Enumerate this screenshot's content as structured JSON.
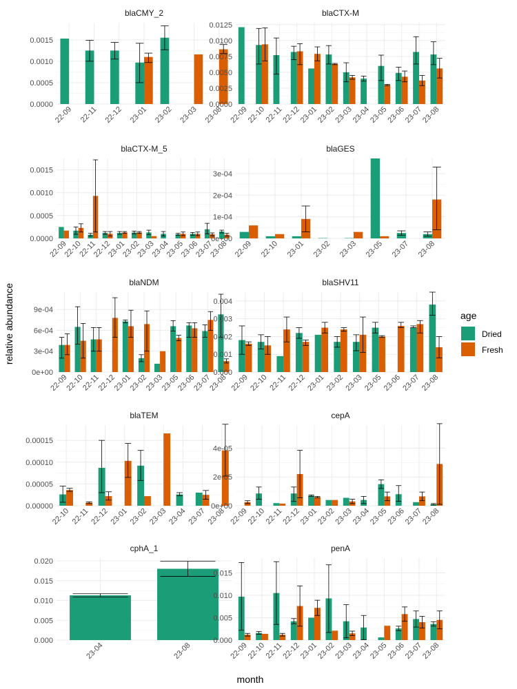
{
  "figure": {
    "xlabel": "month",
    "ylabel": "relative abundance",
    "legend": {
      "title": "age",
      "placement": "right",
      "items": [
        {
          "name": "Dried",
          "color": "#1B9E77"
        },
        {
          "name": "Fresh",
          "color": "#D95F02"
        }
      ]
    },
    "grid": true
  },
  "chart_data": [
    {
      "type": "bar",
      "title": "blaCMY_2",
      "categories": [
        "22-09",
        "22-11",
        "22-12",
        "23-01",
        "23-02",
        "23-03",
        "23-08"
      ],
      "ylim": [
        0,
        0.0019
      ],
      "yticks": [
        0,
        0.0005,
        0.001,
        0.0015
      ],
      "ytick_labels": [
        "0.0000",
        "0.0005",
        "0.0010",
        "0.0015"
      ],
      "series": [
        {
          "name": "Dried",
          "values": [
            0.00153,
            0.00125,
            0.00125,
            0.00097,
            0.00155,
            null,
            null
          ],
          "err_low": [
            null,
            0.001,
            0.00105,
            0.0005,
            0.00127,
            null,
            null
          ],
          "err_high": [
            null,
            0.00149,
            0.00144,
            0.00142,
            0.00183,
            null,
            null
          ]
        },
        {
          "name": "Fresh",
          "values": [
            null,
            null,
            null,
            0.0011,
            null,
            0.00116,
            0.00128
          ],
          "err_low": [
            null,
            null,
            null,
            0.00097,
            null,
            null,
            0.00118
          ],
          "err_high": [
            null,
            null,
            null,
            0.00119,
            null,
            null,
            0.00139
          ]
        }
      ]
    },
    {
      "type": "bar",
      "title": "blaCTX-M",
      "categories": [
        "22-09",
        "22-10",
        "22-11",
        "22-12",
        "23-01",
        "23-02",
        "23-03",
        "23-04",
        "23-05",
        "23-06",
        "23-07",
        "23-08"
      ],
      "ylim": [
        0,
        0.0128
      ],
      "yticks": [
        0,
        0.0025,
        0.005,
        0.0075,
        0.01,
        0.0125
      ],
      "ytick_labels": [
        "0.0000",
        "0.0025",
        "0.0050",
        "0.0075",
        "0.0100",
        "0.0125"
      ],
      "series": [
        {
          "name": "Dried",
          "values": [
            0.0121,
            0.0093,
            0.0077,
            0.0082,
            0.0056,
            0.0078,
            0.005,
            0.004,
            0.006,
            0.0049,
            0.0082,
            0.0078
          ],
          "err_low": [
            null,
            0.0063,
            0.0047,
            0.007,
            null,
            0.0063,
            0.0035,
            0.0036,
            0.0037,
            0.0037,
            0.0063,
            0.0062
          ],
          "err_high": [
            null,
            0.0119,
            0.0104,
            0.0091,
            null,
            0.0092,
            0.0065,
            0.0044,
            0.0077,
            0.0058,
            0.0106,
            0.0098
          ]
        },
        {
          "name": "Fresh",
          "values": [
            null,
            0.0094,
            null,
            0.0083,
            0.0079,
            0.0063,
            0.0042,
            null,
            0.003,
            0.0043,
            0.0037,
            0.0056
          ],
          "err_low": [
            null,
            0.0068,
            null,
            0.0062,
            0.0068,
            0.0062,
            0.0039,
            null,
            0.0029,
            0.0035,
            0.0029,
            0.0041
          ],
          "err_high": [
            null,
            0.012,
            null,
            0.0095,
            0.009,
            0.0064,
            0.0045,
            null,
            0.0031,
            0.0052,
            0.0045,
            0.0072
          ]
        }
      ]
    },
    {
      "type": "bar",
      "title": "blaCTX-M_5",
      "categories": [
        "22-09",
        "22-10",
        "22-11",
        "22-12",
        "23-01",
        "23-02",
        "23-03",
        "23-04",
        "23-05",
        "23-06",
        "23-07",
        "23-08"
      ],
      "ylim": [
        0,
        0.00175
      ],
      "yticks": [
        0,
        0.0005,
        0.001,
        0.0015
      ],
      "ytick_labels": [
        "0.0000",
        "0.0005",
        "0.0010",
        "0.0015"
      ],
      "series": [
        {
          "name": "Dried",
          "values": [
            0.00025,
            0.00017,
            8e-05,
            0.00012,
            0.00012,
            0.00013,
            0.00013,
            0.0001,
            9e-05,
            0.0001,
            0.0002,
            0.00015
          ],
          "err_low": [
            null,
            9e-05,
            5e-05,
            9e-05,
            9e-05,
            0.0001,
            8e-05,
            5e-05,
            7e-05,
            7e-05,
            0.0001,
            0.00012
          ],
          "err_high": [
            null,
            0.00025,
            0.00011,
            0.00015,
            0.00015,
            0.00016,
            0.00018,
            0.00015,
            0.00011,
            0.00013,
            0.00033,
            0.00018
          ]
        },
        {
          "name": "Fresh",
          "values": [
            0.00017,
            0.00023,
            0.00093,
            0.0001,
            0.00013,
            0.00013,
            5e-05,
            null,
            0.0001,
            0.0001,
            9e-05,
            8e-05
          ],
          "err_low": [
            null,
            0.00014,
            0.00014,
            5e-05,
            0.00011,
            0.00011,
            null,
            null,
            6e-05,
            6e-05,
            6e-05,
            5e-05
          ],
          "err_high": [
            null,
            0.00032,
            0.00172,
            0.00015,
            0.00015,
            0.00015,
            null,
            null,
            0.00014,
            0.00014,
            0.00012,
            0.00011
          ]
        }
      ]
    },
    {
      "type": "bar",
      "title": "blaGES",
      "categories": [
        "22-09",
        "22-10",
        "23-01",
        "23-02",
        "23-03",
        "23-05",
        "23-07",
        "23-08"
      ],
      "ylim": [
        0,
        0.00037
      ],
      "yticks": [
        0,
        0.0001,
        0.0002,
        0.0003
      ],
      "ytick_labels": [
        "0e+00",
        "1e-04",
        "2e-04",
        "3e-04"
      ],
      "series": [
        {
          "name": "Dried",
          "values": [
            3e-05,
            1e-05,
            1e-05,
            1.5e-06,
            1.5e-06,
            0.00037,
            2.5e-05,
            2e-05
          ],
          "err_low": [
            null,
            null,
            null,
            null,
            null,
            null,
            1.5e-05,
            1e-05
          ],
          "err_high": [
            null,
            null,
            null,
            null,
            null,
            null,
            3.5e-05,
            3e-05
          ]
        },
        {
          "name": "Fresh",
          "values": [
            6e-05,
            2e-05,
            9e-05,
            null,
            3e-05,
            1e-05,
            null,
            0.00018
          ],
          "err_low": [
            null,
            null,
            3e-05,
            null,
            null,
            null,
            null,
            4e-05
          ],
          "err_high": [
            null,
            null,
            0.00015,
            null,
            null,
            null,
            null,
            0.00033
          ]
        }
      ]
    },
    {
      "type": "bar",
      "title": "blaNDM",
      "categories": [
        "22-09",
        "22-10",
        "22-11",
        "22-12",
        "23-01",
        "23-02",
        "23-03",
        "23-05",
        "23-06",
        "23-07",
        "23-08"
      ],
      "ylim": [
        0,
        0.00115
      ],
      "yticks": [
        0,
        0.0003,
        0.0006,
        0.0009
      ],
      "ytick_labels": [
        "0e+00",
        "3e-04",
        "6e-04",
        "9e-04"
      ],
      "series": [
        {
          "name": "Dried",
          "values": [
            0.00039,
            0.00065,
            0.00047,
            null,
            0.00073,
            0.0002,
            0.00012,
            0.00066,
            0.00067,
            0.00059,
            0.00083
          ],
          "err_low": [
            0.0002,
            0.0004,
            0.0003,
            null,
            0.00071,
            0.00015,
            null,
            0.00059,
            0.0005,
            0.0005,
            0.0005
          ],
          "err_high": [
            0.0005,
            0.00094,
            0.00064,
            null,
            0.00075,
            0.00025,
            null,
            0.00074,
            0.00071,
            0.00068,
            0.00112
          ]
        },
        {
          "name": "Fresh",
          "values": [
            0.00039,
            0.00045,
            0.00047,
            0.00078,
            0.00066,
            0.00069,
            0.0003,
            0.00049,
            0.00063,
            0.00075,
            0.00016
          ],
          "err_low": [
            0.00025,
            0.0002,
            0.0003,
            0.0005,
            0.0005,
            0.0003,
            null,
            0.00045,
            0.0005,
            0.0006,
            0.00013
          ],
          "err_high": [
            0.00055,
            0.0007,
            0.00064,
            0.00107,
            0.00089,
            0.00088,
            null,
            0.00053,
            0.00071,
            0.00087,
            0.00019
          ]
        }
      ]
    },
    {
      "type": "bar",
      "title": "blaSHV11",
      "categories": [
        "22-09",
        "22-10",
        "22-11",
        "22-12",
        "23-01",
        "23-02",
        "23-03",
        "23-05",
        "23-06",
        "23-07",
        "23-08"
      ],
      "ylim": [
        0,
        0.0045
      ],
      "yticks": [
        0,
        0.001,
        0.002,
        0.003,
        0.004
      ],
      "ytick_labels": [
        "0.000",
        "0.001",
        "0.002",
        "0.003",
        "0.004"
      ],
      "series": [
        {
          "name": "Dried",
          "values": [
            0.0018,
            0.0017,
            0.0009,
            0.0022,
            0.0021,
            0.0017,
            0.0017,
            0.0025,
            null,
            0.0025,
            0.0038
          ],
          "err_low": [
            0.001,
            0.0013,
            null,
            0.0019,
            null,
            0.0014,
            0.0012,
            0.0022,
            null,
            0.0025,
            0.0032
          ],
          "err_high": [
            0.0026,
            0.0021,
            null,
            0.0025,
            null,
            0.002,
            0.0021,
            0.0028,
            null,
            0.0026,
            0.0045
          ]
        },
        {
          "name": "Fresh",
          "values": [
            0.0016,
            0.0015,
            0.0024,
            0.0017,
            0.0025,
            0.0024,
            0.0021,
            0.002,
            0.0026,
            0.0027,
            0.0014
          ],
          "err_low": [
            0.0015,
            0.001,
            0.0017,
            0.0015,
            0.0022,
            0.0023,
            0.0011,
            0.00195,
            0.0025,
            0.0022,
            0.0008
          ],
          "err_high": [
            0.0017,
            0.002,
            0.0031,
            0.0018,
            0.0028,
            0.0025,
            0.0031,
            0.00205,
            0.0028,
            0.0029,
            0.002
          ]
        }
      ]
    },
    {
      "type": "bar",
      "title": "blaTEM",
      "categories": [
        "22-10",
        "22-11",
        "22-12",
        "23-01",
        "23-02",
        "23-03",
        "23-04",
        "23-07",
        "23-08"
      ],
      "ylim": [
        0,
        0.000185
      ],
      "yticks": [
        0,
        5e-05,
        0.0001,
        0.00015
      ],
      "ytick_labels": [
        "0.00000",
        "0.00005",
        "0.00010",
        "0.00015"
      ],
      "series": [
        {
          "name": "Dried",
          "values": [
            2.6e-05,
            null,
            8.7e-05,
            null,
            9.2e-05,
            null,
            2.6e-05,
            3e-05,
            null
          ],
          "err_low": [
            8e-06,
            null,
            3e-05,
            null,
            5.8e-05,
            null,
            2.3e-05,
            null,
            null
          ],
          "err_high": [
            4.5e-05,
            null,
            0.00015,
            null,
            0.000127,
            null,
            3e-05,
            null,
            null
          ]
        },
        {
          "name": "Fresh",
          "values": [
            3.6e-05,
            7e-06,
            2.2e-05,
            0.000103,
            2.2e-05,
            0.000166,
            null,
            2.5e-05,
            0.000127
          ],
          "err_low": [
            3.3e-05,
            5e-06,
            1.3e-05,
            6.5e-05,
            null,
            null,
            null,
            1.5e-05,
            6.8e-05
          ],
          "err_high": [
            4e-05,
            9e-06,
            3.2e-05,
            0.000143,
            null,
            null,
            null,
            3.5e-05,
            0.000187
          ]
        }
      ]
    },
    {
      "type": "bar",
      "title": "cepA",
      "categories": [
        "22-09",
        "22-10",
        "22-11",
        "22-12",
        "23-01",
        "23-02",
        "23-03",
        "23-04",
        "23-05",
        "23-06",
        "23-07",
        "23-08"
      ],
      "ylim": [
        0,
        5.6e-05
      ],
      "yticks": [
        0,
        2e-05,
        4e-05
      ],
      "ytick_labels": [
        "0e+00",
        "2e-05",
        "4e-05"
      ],
      "series": [
        {
          "name": "Dried",
          "values": [
            null,
            8.5e-06,
            1.8e-06,
            8.5e-06,
            7e-06,
            4e-06,
            5.5e-06,
            4e-06,
            1.5e-05,
            8e-06,
            2.5e-06,
            1e-06
          ],
          "err_low": [
            null,
            4.5e-06,
            null,
            3e-06,
            6.5e-06,
            null,
            null,
            1.5e-06,
            1.2e-05,
            3e-06,
            null,
            5e-07
          ],
          "err_high": [
            null,
            1.3e-05,
            null,
            1.3e-05,
            7.5e-06,
            null,
            null,
            6.5e-06,
            1.8e-05,
            1.4e-05,
            null,
            1.5e-06
          ]
        },
        {
          "name": "Fresh",
          "values": [
            2.5e-06,
            null,
            1.5e-06,
            2.2e-05,
            6e-06,
            4e-06,
            3e-06,
            null,
            6.5e-06,
            null,
            6.5e-06,
            2.9e-05
          ],
          "err_low": [
            1.5e-06,
            null,
            null,
            5.5e-06,
            5.5e-06,
            null,
            1.5e-06,
            null,
            3.5e-06,
            null,
            3.5e-06,
            1e-06
          ],
          "err_high": [
            3.5e-06,
            null,
            null,
            3.85e-05,
            6.5e-06,
            null,
            4.5e-06,
            null,
            9.5e-06,
            null,
            9.5e-06,
            5.7e-05
          ]
        }
      ]
    },
    {
      "type": "bar",
      "title": "cphA_1",
      "categories": [
        "23-04",
        "23-08"
      ],
      "ylim": [
        0,
        0.0207
      ],
      "yticks": [
        0,
        0.005,
        0.01,
        0.015,
        0.02
      ],
      "ytick_labels": [
        "0.000",
        "0.005",
        "0.010",
        "0.015",
        "0.020"
      ],
      "series": [
        {
          "name": "Dried",
          "values": [
            0.0113,
            0.018
          ],
          "err_low": [
            0.0109,
            0.0161
          ],
          "err_high": [
            0.0117,
            0.0199
          ]
        }
      ]
    },
    {
      "type": "bar",
      "title": "penA",
      "categories": [
        "22-09",
        "22-10",
        "22-11",
        "22-12",
        "23-01",
        "23-02",
        "23-03",
        "23-04",
        "23-05",
        "23-06",
        "23-07",
        "23-08"
      ],
      "ylim": [
        0,
        0.0183
      ],
      "yticks": [
        0,
        0.005,
        0.01,
        0.015
      ],
      "ytick_labels": [
        "0.000",
        "0.005",
        "0.010",
        "0.015"
      ],
      "series": [
        {
          "name": "Dried",
          "values": [
            0.0097,
            0.0016,
            0.0105,
            0.0042,
            0.005,
            0.0093,
            0.0042,
            0.0028,
            0.0006,
            0.0026,
            0.0047,
            0.0036
          ],
          "err_low": [
            0.0022,
            0.0013,
            0.0035,
            0.0036,
            null,
            0.0017,
            0.0005,
            0.0001,
            null,
            0.0021,
            0.0029,
            0.0031
          ],
          "err_high": [
            0.0173,
            0.0019,
            0.0175,
            0.0048,
            null,
            0.0168,
            0.0079,
            0.0055,
            null,
            0.0031,
            0.0065,
            0.0041
          ]
        },
        {
          "name": "Fresh",
          "values": [
            0.0012,
            0.0014,
            0.0012,
            0.0076,
            0.0072,
            0.0021,
            0.0015,
            null,
            0.0032,
            0.0058,
            0.004,
            0.0045
          ],
          "err_low": [
            0.0009,
            null,
            0.0009,
            0.0031,
            0.0055,
            null,
            0.001,
            null,
            null,
            0.0042,
            0.0027,
            0.0025
          ],
          "err_high": [
            0.0015,
            null,
            0.0015,
            0.0121,
            0.0089,
            null,
            0.002,
            null,
            null,
            0.0074,
            0.0053,
            0.0065
          ]
        }
      ]
    }
  ]
}
